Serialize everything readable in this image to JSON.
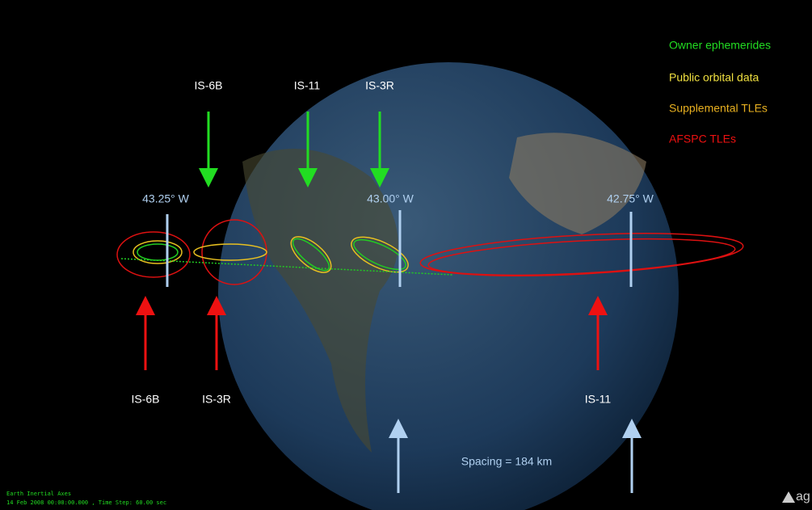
{
  "top_labels": [
    "IS-6B",
    "IS-11",
    "IS-3R"
  ],
  "longitudes": [
    "43.25° W",
    "43.00° W",
    "42.75° W"
  ],
  "bottom_labels": [
    "IS-6B",
    "IS-3R",
    "IS-11"
  ],
  "legend": [
    "Owner ephemerides",
    "Public orbital data",
    "Supplemental TLEs",
    "AFSPC TLEs"
  ],
  "spacing": "Spacing = 184 km",
  "footer": {
    "axes": "Earth Inertial Axes",
    "time": "14 Feb 2008 00:00:00.000   , Time Step: 60.00 sec"
  },
  "logo": "ag"
}
